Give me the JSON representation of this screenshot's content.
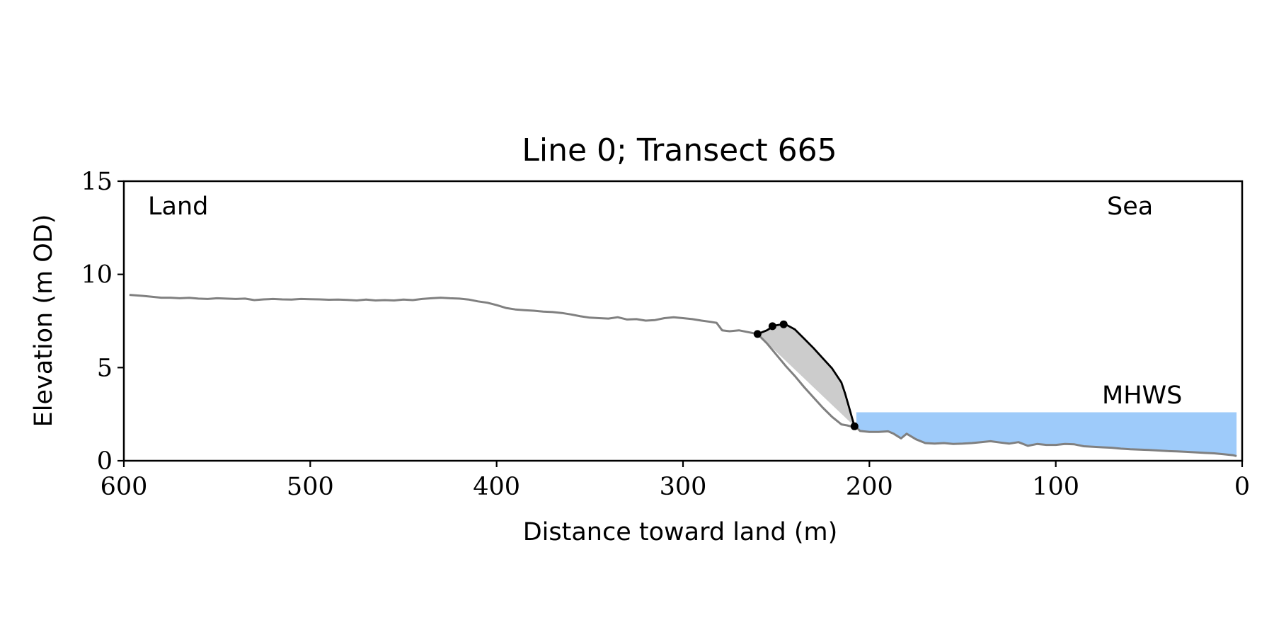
{
  "chart_data": {
    "type": "line",
    "title": "Line 0; Transect 665",
    "xlabel": "Distance toward land (m)",
    "ylabel": "Elevation (m OD)",
    "xlim": [
      600,
      0
    ],
    "ylim": [
      0,
      15
    ],
    "x_ticks": [
      600,
      500,
      400,
      300,
      200,
      100,
      0
    ],
    "y_ticks": [
      0,
      5,
      10,
      15
    ],
    "grid": false,
    "annotations": {
      "land": "Land",
      "sea": "Sea",
      "mhws_label": "MHWS"
    },
    "mhws": {
      "elevation": 2.6,
      "x_from": 207,
      "x_to": 3,
      "color": "#9ecbfa",
      "label_color": "#6a9ccf"
    },
    "profile": {
      "color": "#808080",
      "x": [
        597,
        590,
        585,
        580,
        575,
        570,
        565,
        560,
        555,
        550,
        545,
        540,
        535,
        530,
        525,
        520,
        515,
        510,
        505,
        500,
        495,
        490,
        485,
        480,
        475,
        470,
        465,
        460,
        455,
        450,
        445,
        440,
        435,
        430,
        425,
        420,
        415,
        410,
        405,
        400,
        395,
        390,
        385,
        380,
        375,
        370,
        365,
        360,
        355,
        350,
        345,
        340,
        335,
        330,
        325,
        320,
        315,
        310,
        305,
        300,
        295,
        290,
        285,
        282,
        279,
        275,
        270,
        265,
        260,
        255,
        250,
        245,
        240,
        235,
        230,
        225,
        220,
        215,
        212,
        210,
        208,
        207,
        205,
        200,
        195,
        190,
        187,
        183,
        180,
        175,
        170,
        165,
        160,
        155,
        150,
        145,
        140,
        135,
        130,
        125,
        120,
        115,
        110,
        105,
        100,
        95,
        90,
        85,
        80,
        75,
        70,
        65,
        60,
        55,
        50,
        45,
        40,
        35,
        30,
        25,
        20,
        15,
        10,
        5,
        3
      ],
      "y": [
        8.9,
        8.85,
        8.8,
        8.75,
        8.75,
        8.72,
        8.74,
        8.7,
        8.68,
        8.72,
        8.7,
        8.68,
        8.7,
        8.62,
        8.66,
        8.68,
        8.66,
        8.65,
        8.68,
        8.67,
        8.66,
        8.64,
        8.65,
        8.63,
        8.6,
        8.65,
        8.6,
        8.62,
        8.6,
        8.65,
        8.62,
        8.68,
        8.72,
        8.75,
        8.72,
        8.7,
        8.65,
        8.55,
        8.48,
        8.35,
        8.2,
        8.12,
        8.08,
        8.05,
        8.0,
        7.98,
        7.93,
        7.85,
        7.75,
        7.68,
        7.65,
        7.63,
        7.7,
        7.58,
        7.6,
        7.52,
        7.55,
        7.65,
        7.7,
        7.65,
        7.6,
        7.52,
        7.45,
        7.4,
        7.0,
        6.95,
        7.0,
        6.9,
        6.8,
        6.3,
        5.7,
        5.1,
        4.55,
        3.95,
        3.4,
        2.85,
        2.35,
        1.95,
        1.9,
        1.85,
        1.82,
        1.8,
        1.6,
        1.55,
        1.55,
        1.58,
        1.45,
        1.2,
        1.45,
        1.15,
        0.95,
        0.92,
        0.95,
        0.9,
        0.92,
        0.95,
        1.0,
        1.05,
        0.98,
        0.92,
        1.0,
        0.8,
        0.9,
        0.85,
        0.85,
        0.9,
        0.88,
        0.78,
        0.75,
        0.72,
        0.7,
        0.65,
        0.62,
        0.6,
        0.58,
        0.55,
        0.52,
        0.5,
        0.48,
        0.45,
        0.42,
        0.4,
        0.35,
        0.3,
        0.25
      ]
    },
    "cliff_profile": {
      "color": "#000000",
      "x": [
        260,
        255,
        251,
        248,
        245,
        240,
        235,
        230,
        225,
        220,
        215,
        213,
        211,
        209,
        208
      ],
      "y": [
        6.8,
        7.0,
        7.25,
        7.3,
        7.32,
        7.05,
        6.55,
        6.05,
        5.5,
        4.95,
        4.2,
        3.6,
        2.9,
        2.2,
        1.85
      ]
    },
    "cliff_points": {
      "color": "#000000",
      "x": [
        260,
        252,
        246,
        208
      ],
      "y": [
        6.8,
        7.22,
        7.32,
        1.85
      ]
    },
    "erosion_area": {
      "color": "#cccccc",
      "upper_x": [
        260,
        255,
        251,
        248,
        245,
        240,
        235,
        230,
        225,
        220,
        215,
        213,
        211,
        209,
        208
      ],
      "upper_y": [
        6.8,
        7.0,
        7.25,
        7.3,
        7.32,
        7.05,
        6.55,
        6.05,
        5.5,
        4.95,
        4.2,
        3.6,
        2.9,
        2.2,
        1.85
      ]
    }
  }
}
